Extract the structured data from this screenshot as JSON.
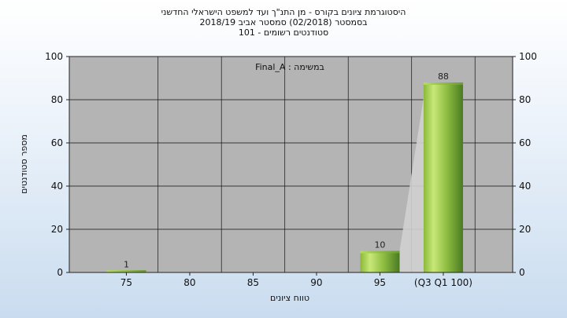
{
  "chart_data": {
    "type": "bar",
    "title_lines": [
      "היסטוגרמת ציונים בקורס - מן התנ\"ך ועד למשפט הישראלי החדשני",
      "בסמסטר  (02/2018)  סמסטר אביב 2018/19",
      "סטודנטים רשומים - 101"
    ],
    "annotation": "במשימה : Final_A",
    "xlabel": "טווח ציונים",
    "ylabel": "מספר סטודנטים",
    "categories": [
      "75",
      "80",
      "85",
      "90",
      "95",
      "(Q3 Q1 100)"
    ],
    "values": [
      1,
      0,
      0,
      0,
      10,
      88
    ],
    "value_labels": [
      "1",
      "",
      "",
      "",
      "10",
      "88"
    ],
    "ylim": [
      0,
      100
    ],
    "yticks": [
      0,
      20,
      40,
      60,
      80,
      100
    ],
    "grid": true,
    "colors": {
      "plot_bg": "#b4b4b4",
      "bar_light": "#c8e878",
      "bar_dark": "#4a7a22",
      "grid": "#111111"
    }
  }
}
